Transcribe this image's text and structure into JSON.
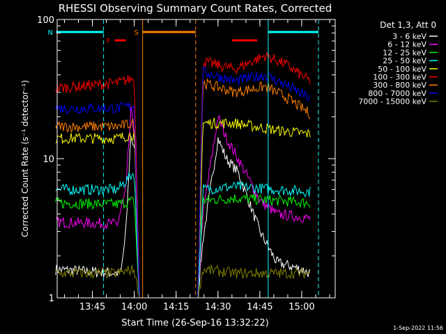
{
  "chart_data": {
    "type": "line",
    "title": "RHESSI Observing Summary Count Rates, Corrected",
    "xlabel": "Start Time (26-Sep-16 13:32:22)",
    "ylabel": "Corrected Count Rate (s⁻¹ detector⁻¹)",
    "y_scale": "log",
    "ylim": [
      1,
      100
    ],
    "xlim": [
      "13:32:22",
      "15:12:00"
    ],
    "y_ticks": [
      {
        "value": 1,
        "label": "1"
      },
      {
        "value": 10,
        "label": "10"
      },
      {
        "value": 100,
        "label": "100"
      }
    ],
    "x_ticks": [
      {
        "value": "13:45",
        "label": "13:45"
      },
      {
        "value": "14:00",
        "label": "14:00"
      },
      {
        "value": "14:15",
        "label": "14:15"
      },
      {
        "value": "14:30",
        "label": "14:30"
      },
      {
        "value": "14:45",
        "label": "14:45"
      },
      {
        "value": "15:00",
        "label": "15:00"
      }
    ],
    "legend_title": "Det 1,3, Att 0",
    "legend_position": "right",
    "series": [
      {
        "name": "3 - 6 keV",
        "color": "#ffffff",
        "values": [
          [
            13.53,
            1.6
          ],
          [
            13.92,
            1.5
          ],
          [
            13.95,
            3
          ],
          [
            13.98,
            15
          ],
          [
            14.01,
            10
          ],
          [
            14.03,
            1
          ],
          [
            14.38,
            1
          ],
          [
            14.41,
            2.6
          ],
          [
            14.5,
            14
          ],
          [
            14.55,
            10
          ],
          [
            14.62,
            8
          ],
          [
            14.75,
            3
          ],
          [
            14.85,
            1.8
          ],
          [
            15.0,
            1.6
          ],
          [
            15.05,
            1.5
          ]
        ]
      },
      {
        "name": "6 - 12 keV",
        "color": "#ff00ff",
        "values": [
          [
            13.53,
            3.5
          ],
          [
            13.9,
            3.4
          ],
          [
            13.95,
            6
          ],
          [
            13.98,
            22
          ],
          [
            14.01,
            13
          ],
          [
            14.03,
            1
          ],
          [
            14.38,
            1
          ],
          [
            14.41,
            4
          ],
          [
            14.5,
            20
          ],
          [
            14.55,
            14
          ],
          [
            14.62,
            10
          ],
          [
            14.75,
            5
          ],
          [
            14.85,
            4
          ],
          [
            15.0,
            3.8
          ],
          [
            15.05,
            3.7
          ]
        ]
      },
      {
        "name": "12 - 25 keV",
        "color": "#00ff00",
        "values": [
          [
            13.53,
            4.8
          ],
          [
            13.9,
            4.7
          ],
          [
            14.0,
            5
          ],
          [
            14.03,
            1
          ],
          [
            14.38,
            1
          ],
          [
            14.41,
            5
          ],
          [
            14.6,
            5.2
          ],
          [
            14.85,
            5
          ],
          [
            15.05,
            4.8
          ]
        ]
      },
      {
        "name": "25 - 50 keV",
        "color": "#00ffff",
        "values": [
          [
            13.53,
            6
          ],
          [
            13.9,
            6
          ],
          [
            14.0,
            8
          ],
          [
            14.03,
            1
          ],
          [
            14.38,
            1
          ],
          [
            14.41,
            6
          ],
          [
            14.6,
            6.3
          ],
          [
            14.85,
            6
          ],
          [
            15.05,
            5.8
          ]
        ]
      },
      {
        "name": "50 - 100 keV",
        "color": "#ffff00",
        "values": [
          [
            13.53,
            14
          ],
          [
            13.9,
            14
          ],
          [
            14.0,
            15
          ],
          [
            14.03,
            1
          ],
          [
            14.38,
            1
          ],
          [
            14.41,
            18
          ],
          [
            14.6,
            18
          ],
          [
            14.85,
            16
          ],
          [
            15.05,
            15
          ]
        ]
      },
      {
        "name": "100 - 300 keV",
        "color": "#ff0000",
        "values": [
          [
            13.53,
            32
          ],
          [
            13.9,
            35
          ],
          [
            14.0,
            38
          ],
          [
            14.03,
            1
          ],
          [
            14.38,
            1
          ],
          [
            14.41,
            50
          ],
          [
            14.6,
            44
          ],
          [
            14.78,
            55
          ],
          [
            14.9,
            48
          ],
          [
            15.05,
            36
          ]
        ]
      },
      {
        "name": "300 - 800 keV",
        "color": "#ff8000",
        "values": [
          [
            13.53,
            17
          ],
          [
            13.9,
            17
          ],
          [
            14.0,
            18
          ],
          [
            14.03,
            1
          ],
          [
            14.38,
            1
          ],
          [
            14.41,
            35
          ],
          [
            14.6,
            30
          ],
          [
            14.78,
            33
          ],
          [
            14.9,
            28
          ],
          [
            15.05,
            21
          ]
        ]
      },
      {
        "name": "800 - 7000 keV",
        "color": "#0000ff",
        "values": [
          [
            13.53,
            23
          ],
          [
            13.9,
            23
          ],
          [
            14.0,
            24
          ],
          [
            14.03,
            1
          ],
          [
            14.38,
            1
          ],
          [
            14.41,
            42
          ],
          [
            14.6,
            36
          ],
          [
            14.78,
            40
          ],
          [
            14.9,
            34
          ],
          [
            15.05,
            27
          ]
        ]
      },
      {
        "name": "7000 - 15000 keV",
        "color": "#808000",
        "values": [
          [
            13.53,
            1.5
          ],
          [
            13.9,
            1.5
          ],
          [
            14.0,
            1.6
          ],
          [
            14.03,
            1
          ],
          [
            14.38,
            1
          ],
          [
            14.41,
            1.6
          ],
          [
            14.6,
            1.5
          ],
          [
            14.85,
            1.5
          ],
          [
            15.05,
            1.5
          ]
        ]
      }
    ],
    "flags": [
      {
        "label": "N",
        "color": "#00ffff",
        "start": "13:32",
        "end": "13:49"
      },
      {
        "label": "N",
        "color": "#00ffff",
        "start": "14:48",
        "end": "15:06"
      },
      {
        "label": "F",
        "color": "#ff0000",
        "start": "13:53",
        "end": "13:57"
      },
      {
        "label": "F",
        "color": "#ff0000",
        "start": "14:35",
        "end": "14:44"
      },
      {
        "label": "S",
        "color": "#ff8000",
        "start": "14:03",
        "end": "14:22"
      }
    ],
    "vertical_markers": [
      {
        "time": "13:49",
        "color": "#00ffff",
        "style": "dashed"
      },
      {
        "time": "14:03",
        "color": "#ff8000",
        "style": "solid"
      },
      {
        "time": "14:22",
        "color": "#ff8000",
        "style": "dashed"
      },
      {
        "time": "14:48",
        "color": "#00ffff",
        "style": "solid"
      },
      {
        "time": "15:06",
        "color": "#00ffff",
        "style": "dashed"
      }
    ]
  },
  "footer": {
    "timestamp": "1-Sep-2022 11:56"
  }
}
